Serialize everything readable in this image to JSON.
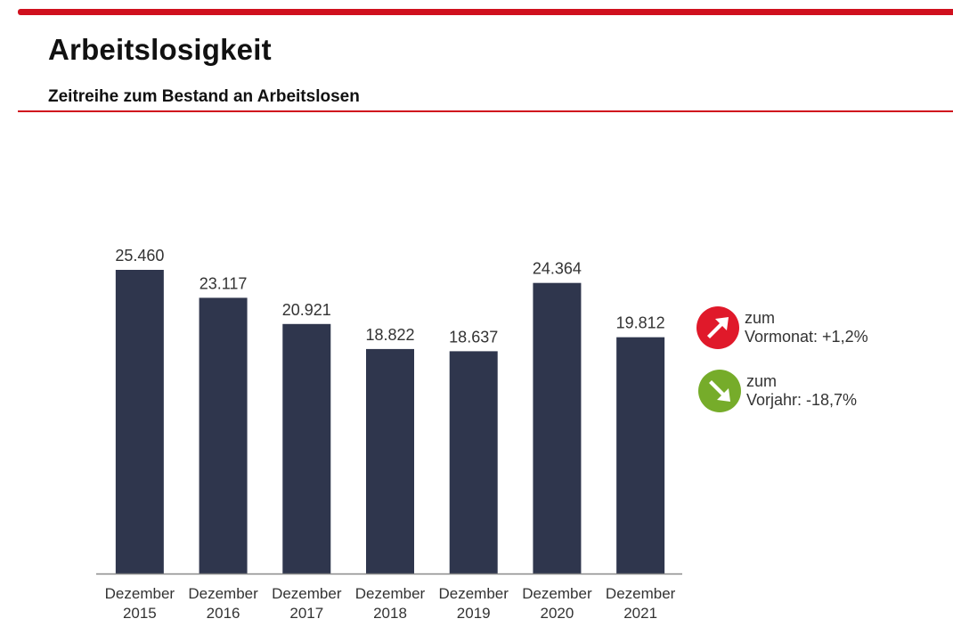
{
  "header": {
    "title": "Arbeitslosigkeit",
    "subtitle": "Zeitreihe zum Bestand an Arbeitslosen"
  },
  "colors": {
    "accent": "#d0101e",
    "bar": "#2f364d",
    "up_indicator": "#e0192a",
    "down_indicator": "#76ac2a"
  },
  "indicators": [
    {
      "icon": "arrow-up-right-icon",
      "line1": "zum",
      "line2": "Vormonat: +1,2%",
      "color": "#e0192a"
    },
    {
      "icon": "arrow-down-right-icon",
      "line1": "zum",
      "line2": "Vorjahr: -18,7%",
      "color": "#76ac2a"
    }
  ],
  "chart_data": {
    "type": "bar",
    "title": "Zeitreihe zum Bestand an Arbeitslosen",
    "xlabel": "",
    "ylabel": "",
    "categories": [
      [
        "Dezember",
        "2015"
      ],
      [
        "Dezember",
        "2016"
      ],
      [
        "Dezember",
        "2017"
      ],
      [
        "Dezember",
        "2018"
      ],
      [
        "Dezember",
        "2019"
      ],
      [
        "Dezember",
        "2020"
      ],
      [
        "Dezember",
        "2021"
      ]
    ],
    "values": [
      25460,
      23117,
      20921,
      18822,
      18637,
      24364,
      19812
    ],
    "value_labels": [
      "25.460",
      "23.117",
      "20.921",
      "18.822",
      "18.637",
      "24.364",
      "19.812"
    ],
    "ylim": [
      0,
      25460
    ],
    "grid": false,
    "legend": "none"
  }
}
